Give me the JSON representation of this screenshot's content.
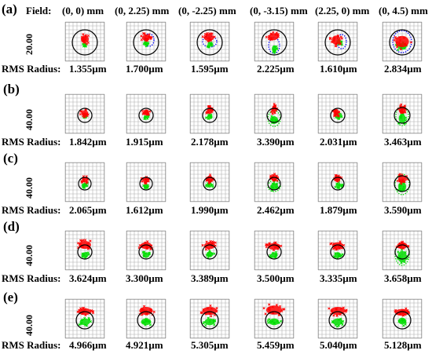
{
  "header": {
    "field_label": "Field:",
    "fields": [
      "(0, 0) mm",
      "(0, 2.25) mm",
      "(0, -2.25) mm",
      "(0, -3.15) mm",
      "(2.25, 0) mm",
      "(0, 4.5) mm"
    ]
  },
  "rms_label": "RMS Radius:",
  "colors": {
    "red": "#ff0000",
    "green": "#00dd00",
    "blue": "#0000ff",
    "circle": "#000000",
    "grid": "#b0b0b0"
  },
  "rows": [
    {
      "label": "(a)",
      "scale": "20.00",
      "rms": [
        "1.355µm",
        "1.700µm",
        "1.595µm",
        "2.225µm",
        "1.610µm",
        "2.834µm"
      ]
    },
    {
      "label": "(b)",
      "scale": "40.00",
      "rms": [
        "1.842µm",
        "1.915µm",
        "2.178µm",
        "3.390µm",
        "2.031µm",
        "3.463µm"
      ]
    },
    {
      "label": "(c)",
      "scale": "40.00",
      "rms": [
        "2.065µm",
        "1.612µm",
        "1.990µm",
        "2.462µm",
        "1.879µm",
        "3.590µm"
      ]
    },
    {
      "label": "(d)",
      "scale": "40.00",
      "rms": [
        "3.624µm",
        "3.300µm",
        "3.389µm",
        "3.500µm",
        "3.335µm",
        "3.658µm"
      ]
    },
    {
      "label": "(e)",
      "scale": "40.00",
      "rms": [
        "4.966µm",
        "4.921µm",
        "5.305µm",
        "5.459µm",
        "5.040µm",
        "5.128µm"
      ]
    }
  ]
}
